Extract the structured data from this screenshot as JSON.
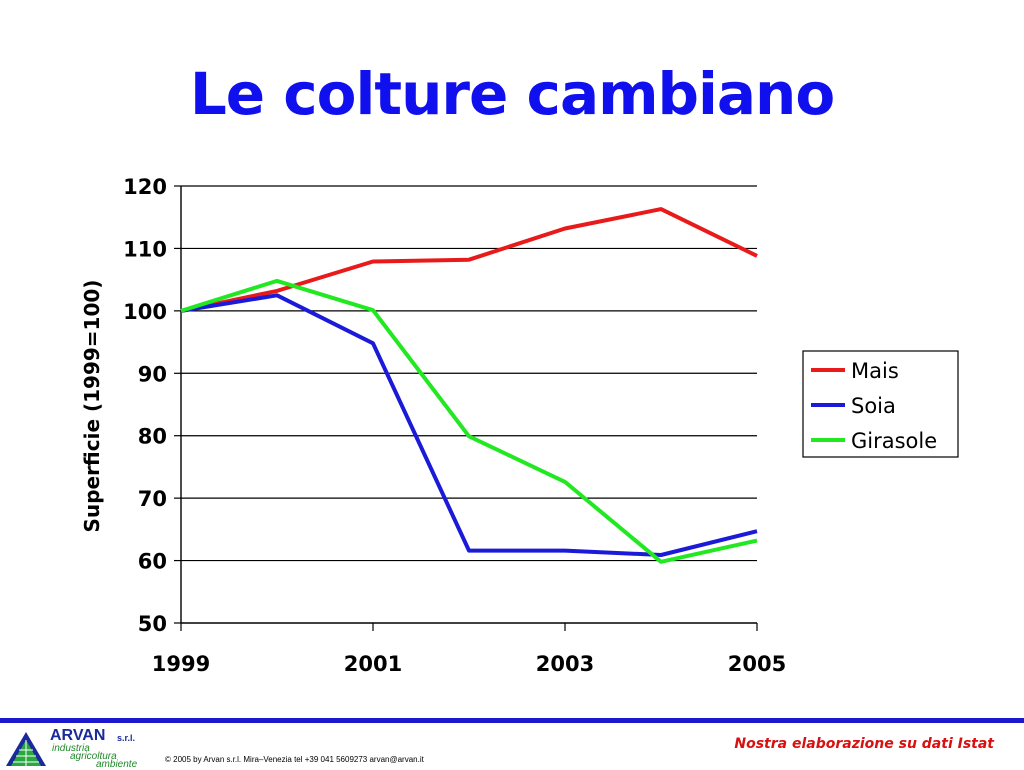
{
  "title": "Le colture cambiano",
  "colors": {
    "title": "#1010ee",
    "mais": "#e81a1a",
    "soia": "#1a1ad8",
    "girasole": "#22e822"
  },
  "chart_data": {
    "type": "line",
    "ylabel": "Superficie (1999=100)",
    "xlabel": "",
    "x": [
      1999,
      2000,
      2001,
      2002,
      2003,
      2004,
      2005
    ],
    "xticks": [
      "1999",
      "2001",
      "2003",
      "2005"
    ],
    "xlim": [
      1999,
      2005
    ],
    "yticks": [
      "50",
      "60",
      "70",
      "80",
      "90",
      "100",
      "110",
      "120"
    ],
    "ylim": [
      50,
      120
    ],
    "grid": true,
    "legend_position": "right",
    "series": [
      {
        "name": "Mais",
        "color": "#e81a1a",
        "values": [
          100,
          103.2,
          107.9,
          108.2,
          113.2,
          116.3,
          108.8
        ]
      },
      {
        "name": "Soia",
        "color": "#1a1ad8",
        "values": [
          100,
          102.5,
          94.8,
          61.6,
          61.6,
          60.9,
          64.7
        ]
      },
      {
        "name": "Girasole",
        "color": "#22e822",
        "values": [
          100,
          104.8,
          100.1,
          79.9,
          72.6,
          59.8,
          63.2
        ]
      }
    ]
  },
  "footer": {
    "logo_name": "ARVAN",
    "logo_suffix": "s.r.l.",
    "logo_line1": "industria",
    "logo_line2": "agricoltura",
    "logo_line3": "ambiente",
    "copyright": "© 2005 by Arvan s.r.l. Mira–Venezia tel +39 041 5609273 arvan@arvan.it",
    "source_note": "Nostra elaborazione su dati Istat"
  }
}
